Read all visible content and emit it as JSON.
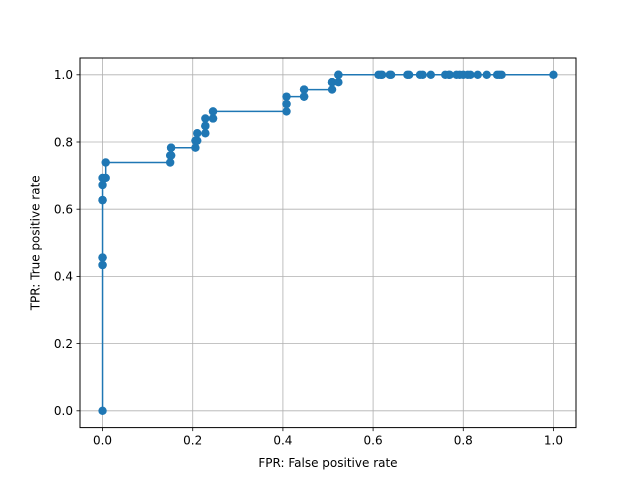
{
  "chart_data": {
    "type": "line",
    "title": "",
    "xlabel": "FPR: False positive rate",
    "ylabel": "TPR: True positive rate",
    "xlim": [
      -0.05,
      1.05
    ],
    "ylim": [
      -0.05,
      1.05
    ],
    "xticks": [
      0.0,
      0.2,
      0.4,
      0.6,
      0.8,
      1.0
    ],
    "yticks": [
      0.0,
      0.2,
      0.4,
      0.6,
      0.8,
      1.0
    ],
    "xtick_labels": [
      "0.0",
      "0.2",
      "0.4",
      "0.6",
      "0.8",
      "1.0"
    ],
    "ytick_labels": [
      "0.0",
      "0.2",
      "0.4",
      "0.6",
      "0.8",
      "1.0"
    ],
    "grid": true,
    "legend": "none",
    "series_color": "#1f77b4",
    "series": [
      {
        "x": [
          0.0,
          0.0,
          0.0,
          0.0,
          0.0,
          0.0,
          0.0,
          0.0,
          0.0,
          0.007,
          0.007,
          0.15,
          0.15,
          0.152,
          0.152,
          0.152,
          0.152,
          0.206,
          0.206,
          0.21,
          0.21,
          0.228,
          0.228,
          0.228,
          0.228,
          0.245,
          0.245,
          0.245,
          0.245,
          0.408,
          0.408,
          0.408,
          0.408,
          0.447,
          0.447,
          0.447,
          0.447,
          0.509,
          0.509,
          0.509,
          0.509,
          0.523,
          0.523,
          0.523,
          0.523,
          0.612,
          0.617,
          0.62,
          0.637,
          0.64,
          0.676,
          0.68,
          0.704,
          0.71,
          0.728,
          0.76,
          0.768,
          0.77,
          0.785,
          0.792,
          0.8,
          0.81,
          0.816,
          0.832,
          0.852,
          0.875,
          0.88,
          0.885,
          1.0
        ],
        "y": [
          0.0,
          0.434,
          0.434,
          0.456,
          0.456,
          0.627,
          0.627,
          0.672,
          0.693,
          0.693,
          0.739,
          0.739,
          0.76,
          0.76,
          0.76,
          0.783,
          0.783,
          0.783,
          0.804,
          0.804,
          0.826,
          0.826,
          0.848,
          0.848,
          0.87,
          0.87,
          0.87,
          0.891,
          0.891,
          0.891,
          0.913,
          0.913,
          0.935,
          0.935,
          0.935,
          0.956,
          0.956,
          0.956,
          0.978,
          0.978,
          0.978,
          0.978,
          1.0,
          1.0,
          1.0,
          1.0,
          1.0,
          1.0,
          1.0,
          1.0,
          1.0,
          1.0,
          1.0,
          1.0,
          1.0,
          1.0,
          1.0,
          1.0,
          1.0,
          1.0,
          1.0,
          1.0,
          1.0,
          1.0,
          1.0,
          1.0,
          1.0,
          1.0,
          1.0
        ]
      }
    ]
  }
}
